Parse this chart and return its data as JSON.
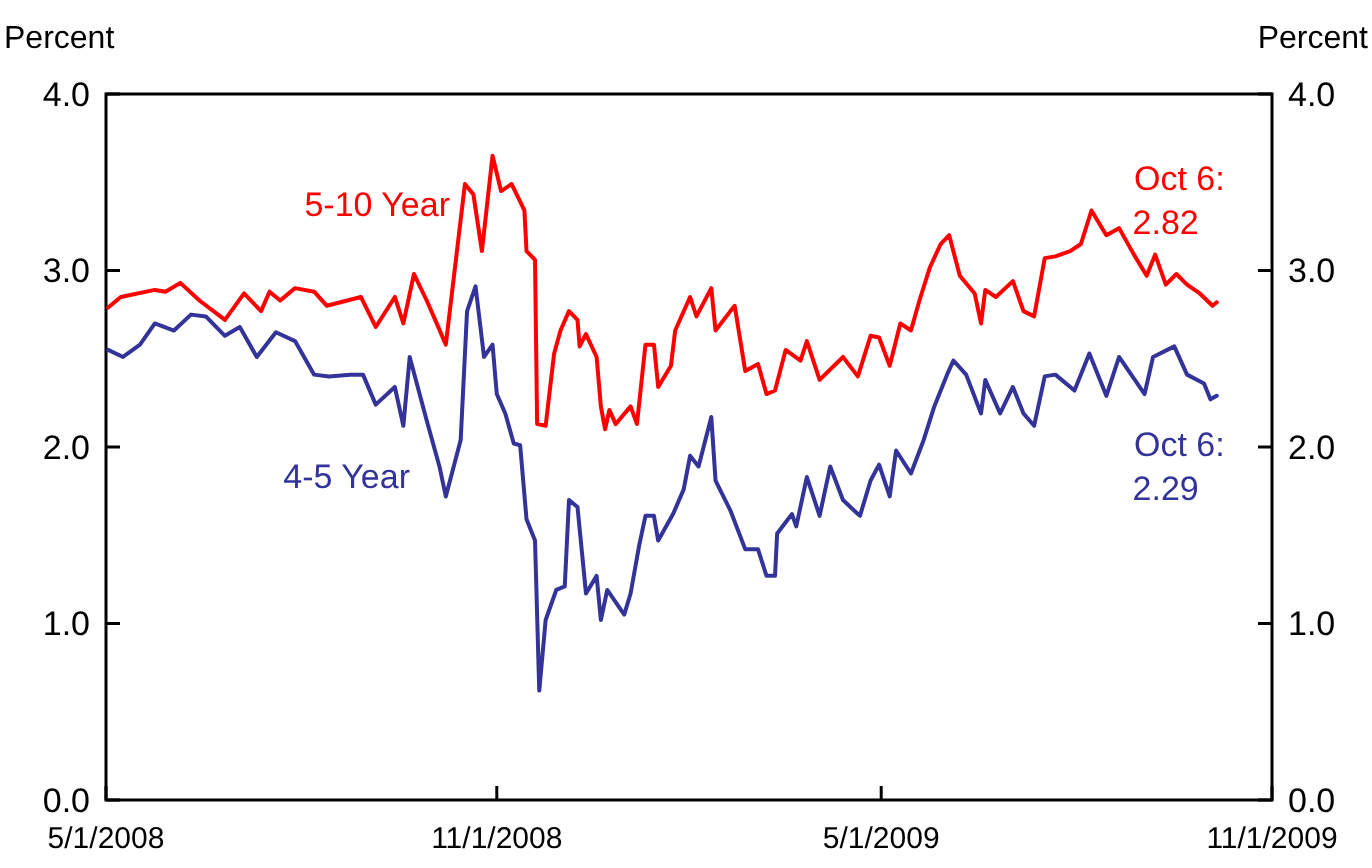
{
  "chart_data": {
    "type": "line",
    "ylabel": "Percent",
    "y2label": "Percent",
    "xlim": [
      "2008-05-01",
      "2009-11-01"
    ],
    "xticks": [
      {
        "value": "2008-05-01",
        "label": "5/1/2008"
      },
      {
        "value": "2008-11-01",
        "label": "11/1/2008"
      },
      {
        "value": "2009-05-01",
        "label": "5/1/2009"
      },
      {
        "value": "2009-11-01",
        "label": "11/1/2009"
      }
    ],
    "ylim": [
      0,
      4
    ],
    "yticks": [
      {
        "value": 0,
        "label": "0.0"
      },
      {
        "value": 1,
        "label": "1.0"
      },
      {
        "value": 2,
        "label": "2.0"
      },
      {
        "value": 3,
        "label": "3.0"
      },
      {
        "value": 4,
        "label": "4.0"
      }
    ],
    "y2lim": [
      0,
      4
    ],
    "y2ticks": [
      {
        "value": 0,
        "label": "0.0"
      },
      {
        "value": 1,
        "label": "1.0"
      },
      {
        "value": 2,
        "label": "2.0"
      },
      {
        "value": 3,
        "label": "3.0"
      },
      {
        "value": 4,
        "label": "4.0"
      }
    ],
    "grid": false,
    "marker": "none",
    "line_style": "solid",
    "series": [
      {
        "name": "5-10 Year",
        "color": "#ff0000",
        "x": [
          "2008-05-02",
          "2008-05-08",
          "2008-05-24",
          "2008-05-29",
          "2008-06-05",
          "2008-06-14",
          "2008-06-26",
          "2008-07-05",
          "2008-07-13",
          "2008-07-17",
          "2008-07-22",
          "2008-07-29",
          "2008-08-07",
          "2008-08-13",
          "2008-08-29",
          "2008-09-05",
          "2008-09-14",
          "2008-09-18",
          "2008-09-23",
          "2008-09-29",
          "2008-10-03",
          "2008-10-08",
          "2008-10-17",
          "2008-10-21",
          "2008-10-25",
          "2008-10-30",
          "2008-11-03",
          "2008-11-08",
          "2008-11-14",
          "2008-11-15",
          "2008-11-19",
          "2008-11-20",
          "2008-11-24",
          "2008-11-28",
          "2008-12-01",
          "2008-12-05",
          "2008-12-09",
          "2008-12-10",
          "2008-12-13",
          "2008-12-18",
          "2008-12-20",
          "2008-12-22",
          "2008-12-24",
          "2008-12-27",
          "2009-01-03",
          "2009-01-06",
          "2009-01-10",
          "2009-01-14",
          "2009-01-16",
          "2009-01-22",
          "2009-01-24",
          "2009-01-31",
          "2009-02-03",
          "2009-02-10",
          "2009-02-12",
          "2009-02-19",
          "2009-02-21",
          "2009-02-26",
          "2009-03-04",
          "2009-03-08",
          "2009-03-12",
          "2009-03-17",
          "2009-03-24",
          "2009-03-27",
          "2009-04-02",
          "2009-04-13",
          "2009-04-20",
          "2009-04-26",
          "2009-04-30",
          "2009-05-05",
          "2009-05-10",
          "2009-05-15",
          "2009-05-19",
          "2009-05-24",
          "2009-05-29",
          "2009-06-02",
          "2009-06-07",
          "2009-06-14",
          "2009-06-17",
          "2009-06-19",
          "2009-06-24",
          "2009-07-02",
          "2009-07-07",
          "2009-07-12",
          "2009-07-17",
          "2009-07-22",
          "2009-07-29",
          "2009-08-03",
          "2009-08-08",
          "2009-08-15",
          "2009-08-21",
          "2009-08-28",
          "2009-09-03",
          "2009-09-07",
          "2009-09-12",
          "2009-09-17",
          "2009-09-22",
          "2009-09-28",
          "2009-10-04",
          "2009-10-06"
        ],
        "values": [
          2.79,
          2.85,
          2.89,
          2.88,
          2.93,
          2.83,
          2.72,
          2.87,
          2.77,
          2.88,
          2.83,
          2.9,
          2.88,
          2.8,
          2.85,
          2.68,
          2.85,
          2.7,
          2.98,
          2.83,
          2.72,
          2.58,
          3.49,
          3.43,
          3.11,
          3.65,
          3.45,
          3.49,
          3.34,
          3.11,
          3.06,
          2.13,
          2.12,
          2.53,
          2.66,
          2.77,
          2.72,
          2.57,
          2.64,
          2.51,
          2.23,
          2.1,
          2.21,
          2.13,
          2.23,
          2.13,
          2.58,
          2.58,
          2.34,
          2.46,
          2.66,
          2.85,
          2.74,
          2.9,
          2.66,
          2.77,
          2.8,
          2.43,
          2.47,
          2.3,
          2.32,
          2.55,
          2.49,
          2.6,
          2.38,
          2.51,
          2.4,
          2.63,
          2.62,
          2.46,
          2.7,
          2.66,
          2.83,
          3.02,
          3.15,
          3.2,
          2.97,
          2.87,
          2.7,
          2.89,
          2.85,
          2.94,
          2.77,
          2.74,
          3.07,
          3.08,
          3.11,
          3.15,
          3.34,
          3.2,
          3.24,
          3.09,
          2.97,
          3.09,
          2.92,
          2.98,
          2.92,
          2.87,
          2.8,
          2.82
        ]
      },
      {
        "name": "4-5 Year",
        "color": "#333399",
        "x": [
          "2008-05-02",
          "2008-05-09",
          "2008-05-17",
          "2008-05-24",
          "2008-06-02",
          "2008-06-10",
          "2008-06-17",
          "2008-06-26",
          "2008-07-03",
          "2008-07-11",
          "2008-07-20",
          "2008-07-29",
          "2008-08-07",
          "2008-08-14",
          "2008-08-24",
          "2008-08-30",
          "2008-09-05",
          "2008-09-14",
          "2008-09-18",
          "2008-09-21",
          "2008-09-29",
          "2008-10-05",
          "2008-10-08",
          "2008-10-15",
          "2008-10-18",
          "2008-10-22",
          "2008-10-26",
          "2008-10-30",
          "2008-11-01",
          "2008-11-05",
          "2008-11-09",
          "2008-11-12",
          "2008-11-15",
          "2008-11-19",
          "2008-11-21",
          "2008-11-24",
          "2008-11-29",
          "2008-12-03",
          "2008-12-05",
          "2008-12-09",
          "2008-12-13",
          "2008-12-18",
          "2008-12-20",
          "2008-12-23",
          "2008-12-31",
          "2009-01-03",
          "2009-01-07",
          "2009-01-10",
          "2009-01-14",
          "2009-01-16",
          "2009-01-23",
          "2009-01-28",
          "2009-01-31",
          "2009-02-04",
          "2009-02-10",
          "2009-02-12",
          "2009-02-19",
          "2009-02-26",
          "2009-03-04",
          "2009-03-08",
          "2009-03-12",
          "2009-03-13",
          "2009-03-20",
          "2009-03-22",
          "2009-03-27",
          "2009-04-02",
          "2009-04-07",
          "2009-04-13",
          "2009-04-20",
          "2009-04-21",
          "2009-04-26",
          "2009-04-30",
          "2009-05-05",
          "2009-05-08",
          "2009-05-15",
          "2009-05-21",
          "2009-05-26",
          "2009-06-01",
          "2009-06-04",
          "2009-06-10",
          "2009-06-17",
          "2009-06-19",
          "2009-06-26",
          "2009-07-02",
          "2009-07-07",
          "2009-07-12",
          "2009-07-17",
          "2009-07-22",
          "2009-07-31",
          "2009-08-07",
          "2009-08-15",
          "2009-08-21",
          "2009-09-02",
          "2009-09-06",
          "2009-09-16",
          "2009-09-22",
          "2009-09-30",
          "2009-10-03",
          "2009-10-06"
        ],
        "values": [
          2.55,
          2.51,
          2.58,
          2.7,
          2.66,
          2.75,
          2.74,
          2.63,
          2.68,
          2.51,
          2.65,
          2.6,
          2.41,
          2.4,
          2.41,
          2.41,
          2.24,
          2.34,
          2.12,
          2.51,
          2.15,
          1.89,
          1.72,
          2.04,
          2.77,
          2.91,
          2.51,
          2.58,
          2.3,
          2.19,
          2.02,
          2.01,
          1.59,
          1.47,
          0.62,
          1.02,
          1.19,
          1.21,
          1.7,
          1.66,
          1.17,
          1.27,
          1.02,
          1.19,
          1.05,
          1.17,
          1.44,
          1.61,
          1.61,
          1.47,
          1.62,
          1.76,
          1.95,
          1.89,
          2.17,
          1.81,
          1.64,
          1.42,
          1.42,
          1.27,
          1.27,
          1.51,
          1.62,
          1.55,
          1.83,
          1.61,
          1.89,
          1.7,
          1.62,
          1.61,
          1.81,
          1.9,
          1.72,
          1.98,
          1.85,
          2.04,
          2.23,
          2.41,
          2.49,
          2.41,
          2.19,
          2.38,
          2.19,
          2.34,
          2.19,
          2.12,
          2.4,
          2.41,
          2.32,
          2.53,
          2.29,
          2.51,
          2.3,
          2.51,
          2.57,
          2.41,
          2.36,
          2.27,
          2.29
        ]
      }
    ],
    "annotations": [
      {
        "text": "Oct 6:\n2.82",
        "x": "2009-10-06",
        "y": 2.82
      },
      {
        "text": "Oct 6:\n2.29",
        "x": "2009-10-06",
        "y": 2.29
      }
    ]
  }
}
